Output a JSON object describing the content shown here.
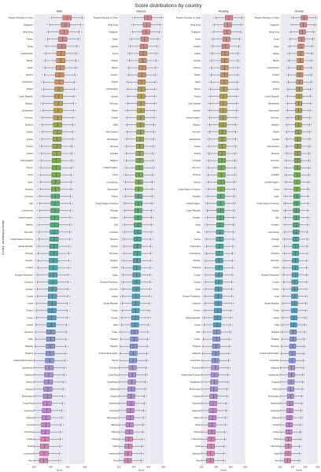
{
  "title": "Score distributions by country",
  "ylabel": "Country - ascending by median",
  "xlabel": "Score",
  "colors": {
    "panel_bg": "#eaeaf2",
    "grid": "#ffffff",
    "whisker": "#3d3d3d",
    "palette": [
      "#e1817e",
      "#d58f54",
      "#b89e3a",
      "#9aa93a",
      "#6db33c",
      "#44b46e",
      "#3bb09a",
      "#3aa9b4",
      "#42a1cd",
      "#7e95e0",
      "#a989e0",
      "#cd7edd",
      "#e07bb6"
    ]
  },
  "chart_data": [
    {
      "type": "box",
      "title": "Math",
      "xlabel": "Score",
      "xlim": [
        200,
        800
      ],
      "xticks": [
        200,
        400,
        600,
        800
      ],
      "categories": [
        "People's Republic of China",
        "Singapore",
        "Hong Kong",
        "Taiwan",
        "Korea",
        "Liechtenstein",
        "Macao",
        "Japan",
        "Estonia",
        "Switzerland",
        "Poland",
        "Czech Republic",
        "Belgium",
        "Netherlands",
        "Germany",
        "Slovenia",
        "Canada",
        "Austria",
        "Finland",
        "Ireland",
        "New Zealand",
        "France",
        "Latvia",
        "Spain",
        "Australia",
        "Lithuania",
        "Italy",
        "Luxembourg",
        "United Kingdom",
        "Norway",
        "Denmark",
        "United States of America",
        "Slovak Republic",
        "Portugal",
        "Hungary",
        "Iceland",
        "Russian Federation",
        "Lithuania",
        "Sweden",
        "Croatia",
        "Israel",
        "Greece",
        "Turkey",
        "Serbia",
        "Romania",
        "Chile",
        "Bulgaria",
        "Thailand",
        "United Arab Emirates",
        "Kazakhstan",
        "Malaysia",
        "Mexico",
        "Uruguay",
        "Montenegro",
        "Costa Rica",
        "Argentina",
        "Albania",
        "Tunisia",
        "Colombia",
        "Jordan",
        "Brazil",
        "Indonesia",
        "Peru"
      ],
      "medians": [
        590,
        570,
        553,
        540,
        527,
        518,
        515,
        510,
        503,
        497,
        495,
        490,
        487,
        485,
        480,
        478,
        478,
        473,
        470,
        468,
        465,
        463,
        460,
        458,
        455,
        452,
        450,
        448,
        445,
        443,
        440,
        438,
        435,
        433,
        430,
        428,
        425,
        423,
        420,
        418,
        415,
        413,
        410,
        405,
        400,
        398,
        395,
        390,
        385,
        380,
        375,
        370,
        365,
        360,
        355,
        350,
        345,
        340,
        335,
        330,
        325,
        320,
        315
      ]
    },
    {
      "type": "box",
      "title": "Science",
      "xlabel": "Score",
      "xlim": [
        200,
        800
      ],
      "xticks": [
        200,
        400,
        600,
        800
      ],
      "categories": [
        "People's Republic of China",
        "Hong Kong",
        "Singapore",
        "Japan",
        "Estonia",
        "Korea",
        "Finland",
        "Macao",
        "Vietnam",
        "Poland",
        "Liechtenstein",
        "Canada",
        "Germany",
        "Taiwan",
        "Ireland",
        "Malta",
        "New Zealand",
        "Netherlands",
        "Slovenia",
        "Australia",
        "Belgium",
        "United Kingdom",
        "Latvia",
        "Luxembourg",
        "Switzerland",
        "France",
        "United States of America",
        "Portugal",
        "Hungary",
        "Italy",
        "Lithuania",
        "Slovenia",
        "Norway",
        "Denmark",
        "Hungary",
        "Iceland",
        "Spain",
        "Russian Federation",
        "Denmark",
        "Ireland",
        "Slovak Republic",
        "Croatia",
        "Greece",
        "Chile",
        "Turkey",
        "Thailand",
        "Bulgaria",
        "United Arab Emirates",
        "Serbia",
        "Romania",
        "Costa Rica",
        "Kazakhstan",
        "Malaysia",
        "Uruguay",
        "Argentina",
        "Colombia",
        "Montenegro",
        "Albania",
        "Mexico",
        "Tunisia",
        "Qatar",
        "Indonesia",
        "Peru"
      ],
      "medians": [
        590,
        575,
        565,
        545,
        535,
        525,
        520,
        515,
        510,
        505,
        503,
        500,
        498,
        495,
        493,
        490,
        488,
        485,
        483,
        480,
        478,
        475,
        473,
        470,
        468,
        465,
        463,
        460,
        458,
        455,
        453,
        450,
        448,
        445,
        443,
        440,
        438,
        435,
        433,
        430,
        428,
        425,
        420,
        415,
        410,
        405,
        400,
        395,
        390,
        385,
        380,
        375,
        370,
        365,
        360,
        355,
        350,
        345,
        340,
        335,
        330,
        325,
        320
      ]
    },
    {
      "type": "box",
      "title": "Reading",
      "xlabel": "Score",
      "xlim": [
        200,
        800
      ],
      "xticks": [
        200,
        400,
        600,
        800
      ],
      "categories": [
        "People's Republic of China",
        "Hong Kong",
        "Singapore",
        "Korea",
        "Finland",
        "Ireland",
        "Canada",
        "Estonia",
        "Taiwan",
        "Japan",
        "Macao",
        "Poland",
        "New Zealand",
        "Sweden",
        "United Kingdom",
        "Belgium",
        "Denmark",
        "Netherlands",
        "France",
        "Poland",
        "Portugal",
        "Germany",
        "Slovenia",
        "Norway",
        "United States of America",
        "Australia",
        "United Kingdom",
        "Czech Republic",
        "Hungary",
        "Latvia",
        "Italy",
        "Austria",
        "Switzerland",
        "Luxembourg",
        "Sweden",
        "Lithuania",
        "Croatia",
        "Iceland",
        "Israel",
        "Russian Federation",
        "Lithuania",
        "Greece",
        "Slovak Republic",
        "Serbia",
        "Chile",
        "Turkey",
        "Bulgaria",
        "Malaysia",
        "Costa Rica",
        "Romania",
        "United Arab Emirates",
        "Kazakhstan",
        "Montenegro",
        "Uruguay",
        "Colombia",
        "Argentina",
        "Mexico",
        "Brazil",
        "Albania",
        "Indonesia",
        "Qatar",
        "Morocco",
        "Peru"
      ],
      "medians": [
        575,
        560,
        550,
        540,
        530,
        520,
        518,
        515,
        513,
        510,
        505,
        500,
        498,
        495,
        493,
        490,
        488,
        485,
        483,
        480,
        478,
        475,
        473,
        470,
        468,
        465,
        463,
        460,
        458,
        455,
        453,
        450,
        448,
        445,
        443,
        440,
        438,
        435,
        433,
        430,
        428,
        425,
        420,
        415,
        410,
        405,
        400,
        395,
        390,
        385,
        380,
        375,
        370,
        365,
        360,
        355,
        350,
        345,
        340,
        335,
        330,
        325,
        320
      ]
    },
    {
      "type": "box",
      "title": "Overall",
      "xlabel": "Score",
      "xlim": [
        200,
        800
      ],
      "xticks": [
        200,
        400,
        600,
        800
      ],
      "categories": [
        "People's Republic of China",
        "Singapore",
        "Hong Kong",
        "Korea",
        "Japan",
        "Taiwan",
        "Macao",
        "Liechtenstein",
        "Finland",
        "Estonia",
        "Ireland",
        "Czech Republic",
        "Netherlands",
        "Switzerland",
        "Germany",
        "Belgium",
        "Poland",
        "Canada",
        "New Zealand",
        "Slovenia",
        "Denmark",
        "France",
        "Australia",
        "United Kingdom",
        "Latvia",
        "Spain",
        "United States of America",
        "Norway",
        "Italy",
        "Hungary",
        "Luxembourg",
        "Portugal",
        "Iceland",
        "Lithuania",
        "Denmark",
        "Austria",
        "Russian Federation",
        "Croatia",
        "Greece",
        "Israel",
        "Slovak Republic",
        "Turkey",
        "Serbia",
        "Chile",
        "Bulgaria",
        "Thailand",
        "Romania",
        "United Arab Emirates",
        "Costa Rica",
        "Malaysia",
        "Kazakhstan",
        "Uruguay",
        "Mexico",
        "Montenegro",
        "Argentina",
        "Colombia",
        "Albania",
        "Tunisia",
        "Jordan",
        "Brazil",
        "Indonesia",
        "Qatar",
        "Peru"
      ],
      "medians": [
        585,
        570,
        555,
        540,
        530,
        525,
        520,
        515,
        512,
        510,
        505,
        500,
        498,
        495,
        493,
        490,
        488,
        485,
        483,
        480,
        478,
        475,
        473,
        470,
        468,
        465,
        463,
        460,
        458,
        455,
        453,
        450,
        448,
        445,
        443,
        440,
        438,
        435,
        433,
        430,
        428,
        425,
        420,
        415,
        410,
        405,
        400,
        395,
        390,
        385,
        380,
        375,
        370,
        365,
        360,
        355,
        350,
        345,
        340,
        335,
        330,
        325,
        320
      ]
    }
  ]
}
